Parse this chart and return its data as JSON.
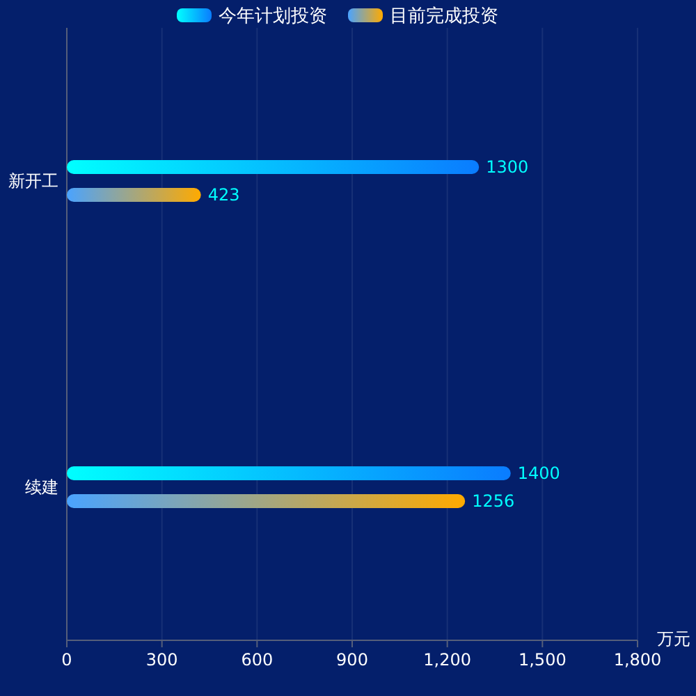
{
  "chart_data": {
    "type": "bar",
    "orientation": "horizontal",
    "categories": [
      "新开工",
      "续建"
    ],
    "series": [
      {
        "name": "今年计划投资",
        "color": "#0a7cff",
        "values": [
          1300,
          1400
        ]
      },
      {
        "name": "目前完成投资",
        "color": "#ffaa00",
        "values": [
          423,
          1256
        ]
      }
    ],
    "xlim": [
      0,
      1800
    ],
    "xticks": [
      0,
      300,
      600,
      900,
      {
        "value": 1200,
        "label": "1,200"
      },
      {
        "value": 1500,
        "label": "1,500"
      },
      {
        "value": 1800,
        "label": "1,800"
      }
    ],
    "xlabel": "万元",
    "grid": "x",
    "legend": "top",
    "data_labels": true
  }
}
